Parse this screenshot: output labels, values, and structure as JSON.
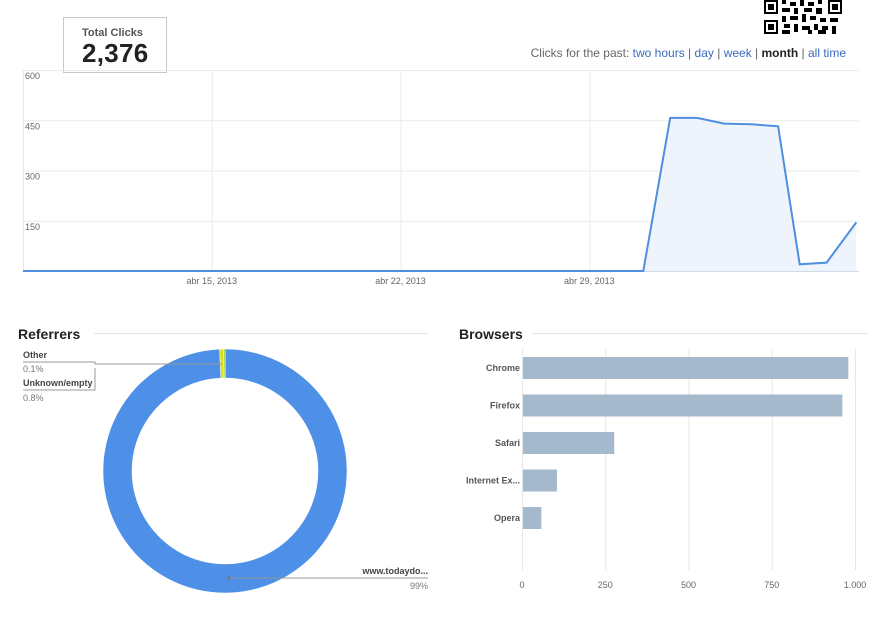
{
  "total": {
    "label": "Total Clicks",
    "value": "2,376"
  },
  "period": {
    "prefix": "Clicks for the past:",
    "options": [
      "two hours",
      "day",
      "week",
      "month",
      "all time"
    ],
    "active": "month"
  },
  "chart_data": [
    {
      "type": "area",
      "title": "",
      "xlabel": "",
      "ylabel": "",
      "yticks": [
        "600",
        "450",
        "300",
        "150"
      ],
      "ylim": [
        0,
        600
      ],
      "xticks": [
        {
          "label": "abr 15, 2013",
          "t": 7
        },
        {
          "label": "abr 22, 2013",
          "t": 14
        },
        {
          "label": "abr 29, 2013",
          "t": 21
        }
      ],
      "x": [
        0,
        23.0,
        24.0,
        25.0,
        26.0,
        27.0,
        28.0,
        28.8,
        29.8,
        30.9
      ],
      "values": [
        0,
        0,
        457,
        457,
        440,
        438,
        432,
        20,
        25,
        145
      ],
      "grid": true,
      "color": "#4e8fdf"
    },
    {
      "type": "pie",
      "title": "Referrers",
      "slices": [
        {
          "label": "Other",
          "pct": "0.1%",
          "value": 0.1,
          "color": "#9bd13a"
        },
        {
          "label": "Unknown/empty",
          "pct": "0.8%",
          "value": 0.8,
          "color": "#d9e021"
        },
        {
          "label": "www.todaydo...",
          "pct": "99%",
          "value": 99.1,
          "color": "#4e8fe8"
        }
      ]
    },
    {
      "type": "bar",
      "orientation": "horizontal",
      "title": "Browsers",
      "categories": [
        "Chrome",
        "Firefox",
        "Safari",
        "Internet Ex...",
        "Opera"
      ],
      "values": [
        980,
        962,
        277,
        105,
        58
      ],
      "xticks": [
        "0",
        "250",
        "500",
        "750",
        "1.000"
      ],
      "xlim": [
        0,
        1000
      ],
      "color": "#a4b9cc"
    }
  ]
}
